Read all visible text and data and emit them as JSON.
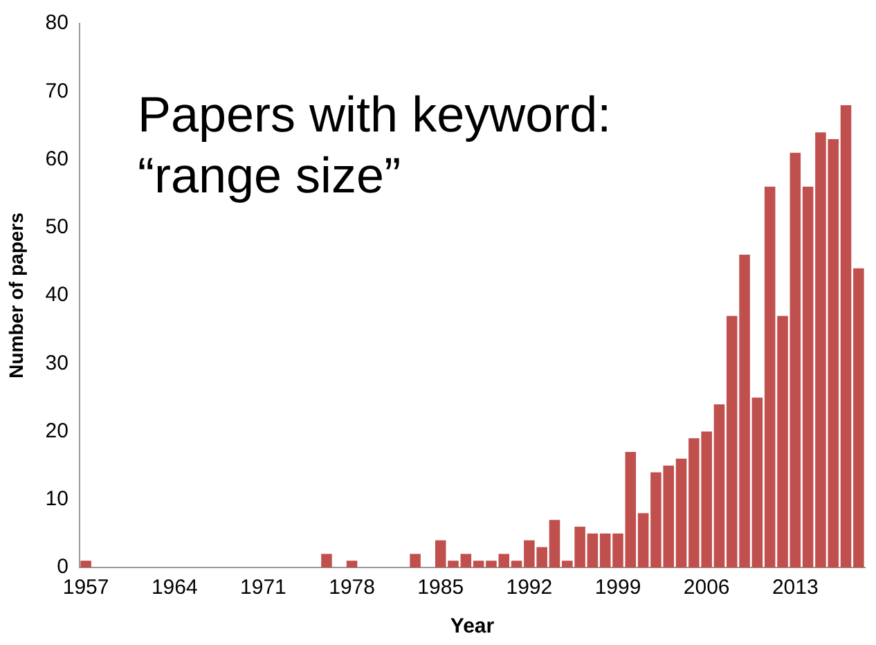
{
  "chart_data": {
    "type": "bar",
    "title": "Papers with keyword:\n“range size”",
    "xlabel": "Year",
    "ylabel": "Number of papers",
    "categories": [
      "1957",
      null,
      null,
      null,
      null,
      null,
      null,
      "1964",
      null,
      null,
      null,
      null,
      null,
      null,
      "1971",
      null,
      null,
      null,
      null,
      null,
      null,
      "1978",
      null,
      null,
      null,
      null,
      null,
      null,
      "1985",
      null,
      null,
      null,
      null,
      null,
      null,
      "1992",
      null,
      null,
      null,
      null,
      null,
      null,
      "1999",
      null,
      null,
      null,
      null,
      null,
      null,
      "2006",
      null,
      null,
      null,
      null,
      null,
      null,
      "2013",
      null,
      null,
      null,
      null,
      null
    ],
    "values": [
      1,
      0,
      0,
      0,
      0,
      0,
      0,
      0,
      0,
      0,
      0,
      0,
      0,
      0,
      0,
      0,
      0,
      0,
      0,
      2,
      0,
      1,
      0,
      0,
      0,
      0,
      2,
      0,
      4,
      1,
      2,
      1,
      1,
      2,
      1,
      4,
      3,
      7,
      1,
      6,
      5,
      5,
      5,
      17,
      8,
      14,
      15,
      16,
      19,
      20,
      24,
      37,
      46,
      25,
      56,
      37,
      61,
      56,
      64,
      63,
      68,
      44
    ],
    "color": "#c0504d",
    "ylim": [
      0,
      80
    ],
    "yticks": [
      0,
      10,
      20,
      30,
      40,
      50,
      60,
      70,
      80
    ],
    "grid": false,
    "legend": false
  }
}
